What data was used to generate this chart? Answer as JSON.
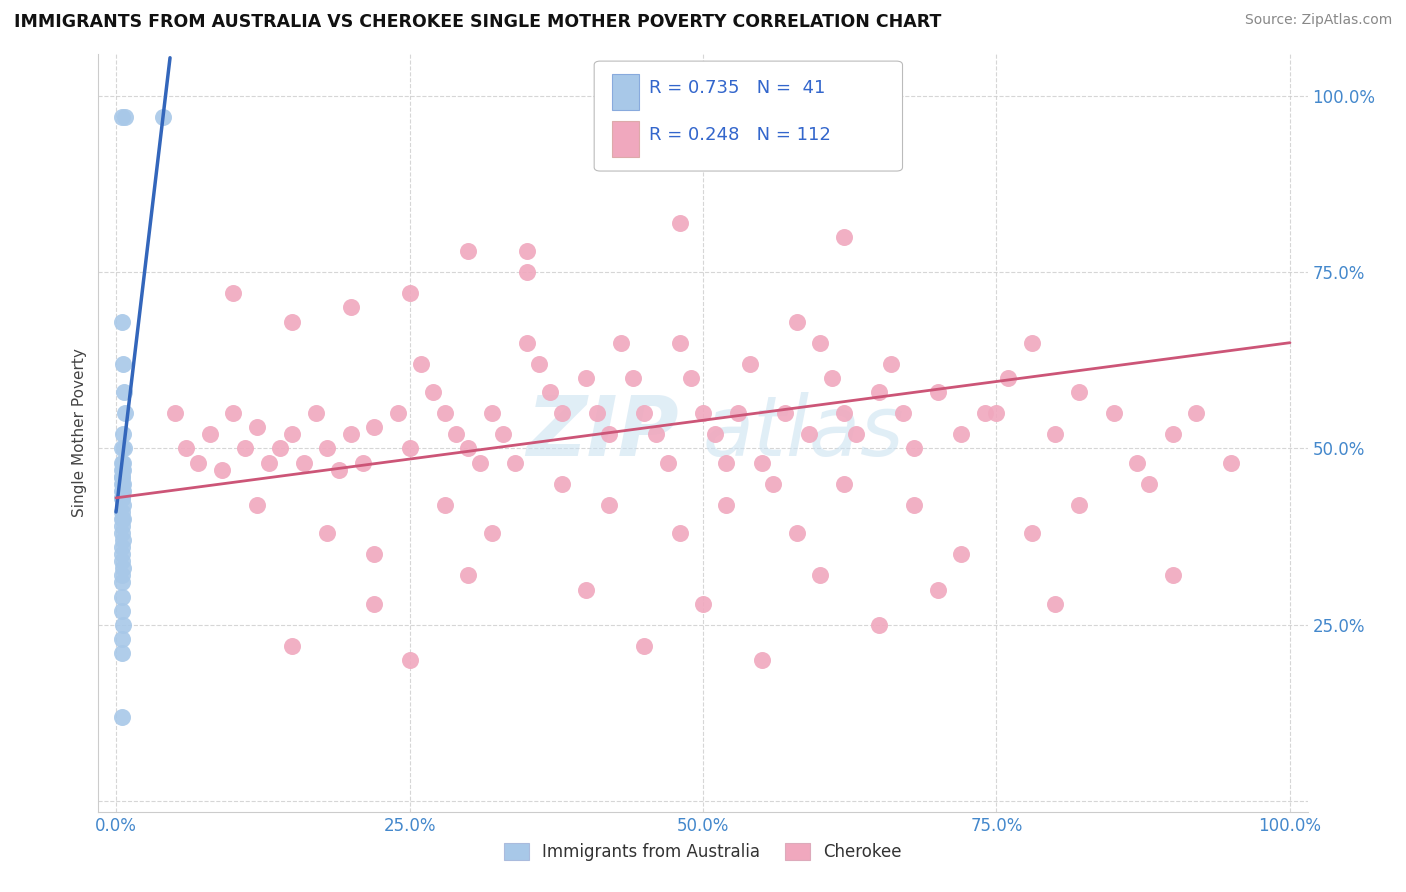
{
  "title": "IMMIGRANTS FROM AUSTRALIA VS CHEROKEE SINGLE MOTHER POVERTY CORRELATION CHART",
  "source": "Source: ZipAtlas.com",
  "ylabel": "Single Mother Poverty",
  "legend_label_1": "Immigrants from Australia",
  "legend_label_2": "Cherokee",
  "r1": 0.735,
  "n1": 41,
  "r2": 0.248,
  "n2": 112,
  "color1": "#a8c8e8",
  "color2": "#f0a8be",
  "line_color1": "#3366bb",
  "line_color2": "#cc5577",
  "watermark_top": "ZIP",
  "watermark_bot": "atlas",
  "xlim": [
    0.0,
    1.0
  ],
  "ylim": [
    0.0,
    1.0
  ],
  "xtick_vals": [
    0.0,
    0.25,
    0.5,
    0.75,
    1.0
  ],
  "ytick_vals": [
    0.0,
    0.25,
    0.5,
    0.75,
    1.0
  ],
  "xticklabels": [
    "0.0%",
    "25.0%",
    "50.0%",
    "75.0%",
    "100.0%"
  ],
  "yticklabels": [
    "",
    "25.0%",
    "50.0%",
    "75.0%",
    "100.0%"
  ],
  "aus_x": [
    0.005,
    0.008,
    0.04,
    0.005,
    0.006,
    0.007,
    0.008,
    0.006,
    0.005,
    0.007,
    0.005,
    0.006,
    0.005,
    0.006,
    0.005,
    0.005,
    0.006,
    0.005,
    0.005,
    0.006,
    0.005,
    0.005,
    0.006,
    0.005,
    0.005,
    0.006,
    0.005,
    0.005,
    0.006,
    0.005,
    0.005,
    0.005,
    0.006,
    0.005,
    0.005,
    0.005,
    0.005,
    0.006,
    0.005,
    0.005,
    0.005
  ],
  "aus_y": [
    0.97,
    0.97,
    0.97,
    0.68,
    0.62,
    0.58,
    0.55,
    0.52,
    0.5,
    0.5,
    0.48,
    0.48,
    0.47,
    0.47,
    0.46,
    0.46,
    0.45,
    0.45,
    0.44,
    0.44,
    0.43,
    0.43,
    0.42,
    0.41,
    0.4,
    0.4,
    0.39,
    0.38,
    0.37,
    0.36,
    0.35,
    0.34,
    0.33,
    0.32,
    0.31,
    0.29,
    0.27,
    0.25,
    0.23,
    0.21,
    0.12
  ],
  "cher_x": [
    0.05,
    0.06,
    0.07,
    0.08,
    0.09,
    0.1,
    0.11,
    0.12,
    0.13,
    0.14,
    0.15,
    0.16,
    0.17,
    0.18,
    0.19,
    0.2,
    0.21,
    0.22,
    0.24,
    0.25,
    0.26,
    0.27,
    0.28,
    0.29,
    0.3,
    0.31,
    0.32,
    0.33,
    0.34,
    0.35,
    0.36,
    0.37,
    0.38,
    0.4,
    0.41,
    0.42,
    0.43,
    0.44,
    0.45,
    0.46,
    0.47,
    0.48,
    0.49,
    0.5,
    0.51,
    0.52,
    0.53,
    0.54,
    0.55,
    0.56,
    0.57,
    0.58,
    0.59,
    0.6,
    0.61,
    0.62,
    0.63,
    0.65,
    0.66,
    0.67,
    0.68,
    0.7,
    0.72,
    0.74,
    0.75,
    0.76,
    0.78,
    0.8,
    0.82,
    0.85,
    0.87,
    0.9,
    0.92,
    0.95,
    0.1,
    0.15,
    0.2,
    0.25,
    0.3,
    0.35,
    0.12,
    0.18,
    0.22,
    0.28,
    0.32,
    0.38,
    0.42,
    0.48,
    0.52,
    0.58,
    0.62,
    0.68,
    0.72,
    0.78,
    0.82,
    0.88,
    0.62,
    0.48,
    0.35,
    0.22,
    0.3,
    0.4,
    0.5,
    0.6,
    0.7,
    0.8,
    0.9,
    0.15,
    0.25,
    0.45,
    0.55,
    0.65
  ],
  "cher_y": [
    0.55,
    0.5,
    0.48,
    0.52,
    0.47,
    0.55,
    0.5,
    0.53,
    0.48,
    0.5,
    0.52,
    0.48,
    0.55,
    0.5,
    0.47,
    0.52,
    0.48,
    0.53,
    0.55,
    0.5,
    0.62,
    0.58,
    0.55,
    0.52,
    0.5,
    0.48,
    0.55,
    0.52,
    0.48,
    0.65,
    0.62,
    0.58,
    0.55,
    0.6,
    0.55,
    0.52,
    0.65,
    0.6,
    0.55,
    0.52,
    0.48,
    0.65,
    0.6,
    0.55,
    0.52,
    0.48,
    0.55,
    0.62,
    0.48,
    0.45,
    0.55,
    0.68,
    0.52,
    0.65,
    0.6,
    0.55,
    0.52,
    0.58,
    0.62,
    0.55,
    0.5,
    0.58,
    0.52,
    0.55,
    0.55,
    0.6,
    0.65,
    0.52,
    0.58,
    0.55,
    0.48,
    0.52,
    0.55,
    0.48,
    0.72,
    0.68,
    0.7,
    0.72,
    0.78,
    0.75,
    0.42,
    0.38,
    0.35,
    0.42,
    0.38,
    0.45,
    0.42,
    0.38,
    0.42,
    0.38,
    0.45,
    0.42,
    0.35,
    0.38,
    0.42,
    0.45,
    0.8,
    0.82,
    0.78,
    0.28,
    0.32,
    0.3,
    0.28,
    0.32,
    0.3,
    0.28,
    0.32,
    0.22,
    0.2,
    0.22,
    0.2,
    0.25
  ]
}
